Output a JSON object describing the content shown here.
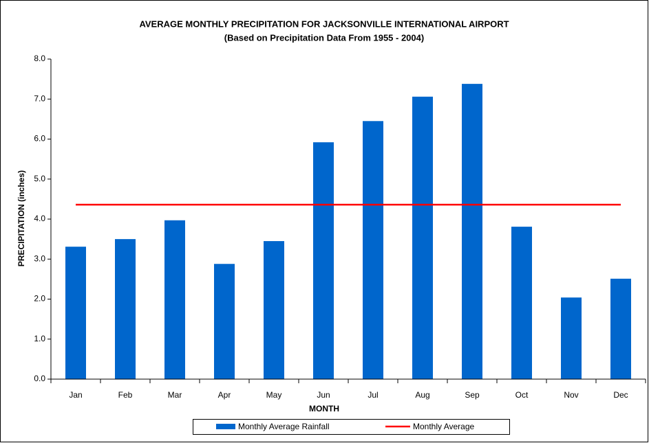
{
  "chart_data": {
    "type": "bar",
    "title": "AVERAGE MONTHLY PRECIPITATION FOR JACKSONVILLE INTERNATIONAL AIRPORT",
    "subtitle": "(Based on Precipitation Data From 1955 - 2004)",
    "x_label": "MONTH",
    "y_label": "PRECIPITATION (inches)",
    "categories": [
      "Jan",
      "Feb",
      "Mar",
      "Apr",
      "May",
      "Jun",
      "Jul",
      "Aug",
      "Sep",
      "Oct",
      "Nov",
      "Dec"
    ],
    "series": [
      {
        "name": "Monthly Average Rainfall",
        "type": "bar",
        "color": "#0066cc",
        "values": [
          3.31,
          3.5,
          3.97,
          2.88,
          3.45,
          5.92,
          6.45,
          7.06,
          7.38,
          3.81,
          2.04,
          2.51
        ]
      },
      {
        "name": "Monthly Average",
        "type": "line",
        "color": "#ff0000",
        "values": [
          4.36,
          4.36,
          4.36,
          4.36,
          4.36,
          4.36,
          4.36,
          4.36,
          4.36,
          4.36,
          4.36,
          4.36
        ]
      }
    ],
    "ylim": [
      0,
      8
    ],
    "yticks": [
      {
        "value": 0,
        "label": "0.0"
      },
      {
        "value": 1,
        "label": "1.0"
      },
      {
        "value": 2,
        "label": "2.0"
      },
      {
        "value": 3,
        "label": "3.0"
      },
      {
        "value": 4,
        "label": "4.0"
      },
      {
        "value": 5,
        "label": "5.0"
      },
      {
        "value": 6,
        "label": "6.0"
      },
      {
        "value": 7,
        "label": "7.0"
      },
      {
        "value": 8,
        "label": "8.0"
      }
    ],
    "grid": false,
    "legend": "bottom"
  }
}
